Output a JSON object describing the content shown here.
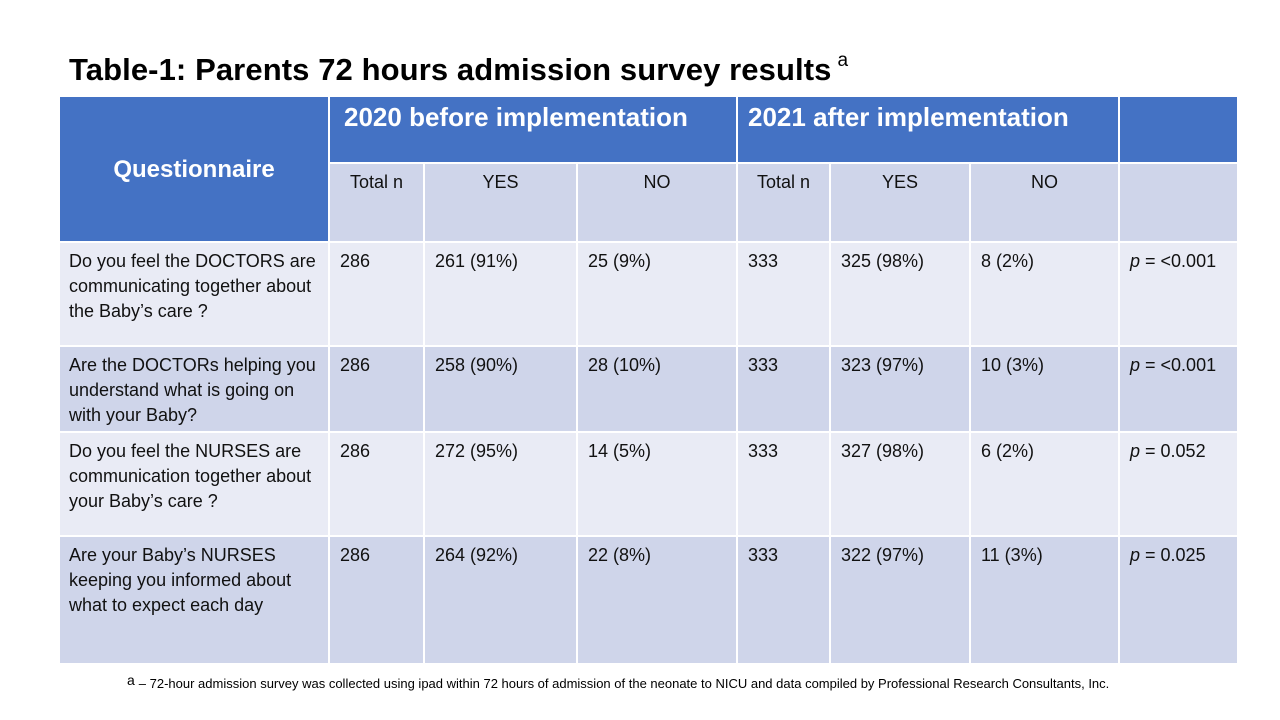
{
  "title": {
    "text": "Table-1: Parents 72 hours admission survey results",
    "superscript": "a"
  },
  "table": {
    "questionnaire_header": "Questionnaire",
    "group_2020": "2020 before implementation",
    "group_2021": "2021 after implementation",
    "subheaders": [
      "Total n",
      "YES",
      "NO",
      "Total n",
      "YES",
      "NO"
    ],
    "rows": [
      {
        "question": "Do you feel the DOCTORS are communicating together about the Baby’s care ?",
        "total_2020": "286",
        "yes_2020": "261 (91%)",
        "no_2020": "25 (9%)",
        "total_2021": "333",
        "yes_2021": "325 (98%)",
        "no_2021": "8 (2%)",
        "p_label": "p",
        "p_value": " = <0.001"
      },
      {
        "question": "Are the DOCTORs helping you understand what is going on with your Baby?",
        "total_2020": "286",
        "yes_2020": "258 (90%)",
        "no_2020": "28 (10%)",
        "total_2021": "333",
        "yes_2021": "323 (97%)",
        "no_2021": "10 (3%)",
        "p_label": "p",
        "p_value": " = <0.001"
      },
      {
        "question": "Do you feel the NURSES are communication together about your Baby’s care ?",
        "total_2020": "286",
        "yes_2020": "272 (95%)",
        "no_2020": "14 (5%)",
        "total_2021": "333",
        "yes_2021": "327 (98%)",
        "no_2021": "6 (2%)",
        "p_label": "p",
        "p_value": " = 0.052"
      },
      {
        "question": "Are your Baby’s NURSES keeping you informed about what to expect each day",
        "total_2020": "286",
        "yes_2020": "264 (92%)",
        "no_2020": "22 (8%)",
        "total_2021": "333",
        "yes_2021": "322 (97%)",
        "no_2021": "11 (3%)",
        "p_label": "p",
        "p_value": " = 0.025"
      }
    ]
  },
  "footnote": {
    "marker": "a",
    "text": "– 72-hour admission survey was collected using ipad within 72 hours of admission of the neonate to NICU  and data compiled by Professional Research Consultants, Inc."
  },
  "colors": {
    "header_blue": "#4472c4",
    "row_dark": "#cfd5ea",
    "row_light": "#e9ebf5"
  }
}
